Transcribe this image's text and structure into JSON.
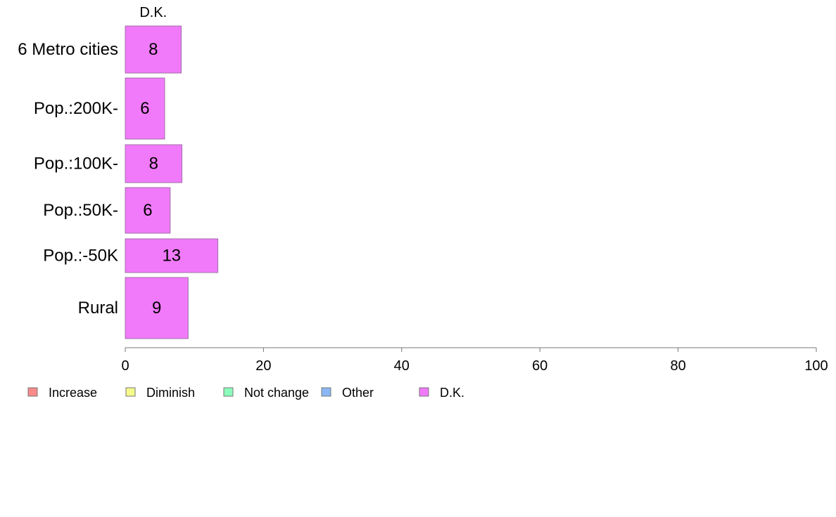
{
  "chart_data": {
    "type": "bar",
    "orientation": "horizontal",
    "stacked": true,
    "column_header": "D.K.",
    "categories": [
      "6 Metro cities",
      "Pop.:200K-",
      "Pop.:100K-",
      "Pop.:50K-",
      "Pop.:-50K",
      "Rural"
    ],
    "series": [
      {
        "name": "Increase",
        "color": "#f88a8a",
        "values": [
          0,
          0,
          0,
          0,
          0,
          0
        ]
      },
      {
        "name": "Diminish",
        "color": "#f4fb8a",
        "values": [
          0,
          0,
          0,
          0,
          0,
          0
        ]
      },
      {
        "name": "Not change",
        "color": "#8afbbb",
        "values": [
          0,
          0,
          0,
          0,
          0,
          0
        ]
      },
      {
        "name": "Other",
        "color": "#8ab8f4",
        "values": [
          0,
          0,
          0,
          0,
          0,
          0
        ]
      },
      {
        "name": "D.K.",
        "color": "#f07af9",
        "values": [
          8.1,
          5.7,
          8.2,
          6.5,
          13.4,
          9.1
        ]
      }
    ],
    "data_labels": [
      "8",
      "6",
      "8",
      "6",
      "13",
      "9"
    ],
    "xlim": [
      0,
      100
    ],
    "x_ticks": [
      0,
      20,
      40,
      60,
      80,
      100
    ],
    "x_tick_labels": [
      "0",
      "20",
      "40",
      "60",
      "80",
      "100"
    ],
    "xlabel": "",
    "ylabel": "",
    "title": "",
    "grid": false,
    "legend_position": "bottom"
  }
}
